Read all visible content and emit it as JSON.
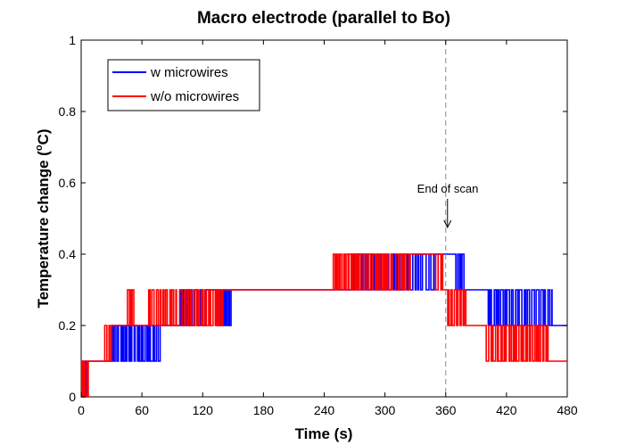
{
  "chart_data": {
    "type": "line",
    "title": "Macro electrode (parallel to Bo)",
    "xlabel": "Time (s)",
    "ylabel_prefix": "Temperature change (",
    "ylabel_sup": "o",
    "ylabel_suffix": "C)",
    "xlim": [
      0,
      480
    ],
    "ylim": [
      0,
      1
    ],
    "xticks": [
      0,
      60,
      120,
      180,
      240,
      300,
      360,
      420,
      480
    ],
    "yticks": [
      0,
      0.2,
      0.4,
      0.6,
      0.8,
      1
    ],
    "xtick_labels": [
      "0",
      "60",
      "120",
      "180",
      "240",
      "300",
      "360",
      "420",
      "480"
    ],
    "ytick_labels": [
      "0",
      "0.2",
      "0.4",
      "0.6",
      "0.8",
      "1"
    ],
    "grid": false,
    "legend_position": "top-left",
    "series": [
      {
        "name": "w microwires",
        "color": "#0000ff",
        "segments": [
          {
            "t": [
              0,
              5
            ],
            "levels": [
              0,
              0.1
            ],
            "toggle": 1.0
          },
          {
            "t": [
              5,
              30
            ],
            "levels": [
              0.1
            ],
            "toggle": 0
          },
          {
            "t": [
              30,
              36
            ],
            "levels": [
              0.1,
              0.2
            ],
            "toggle": 1.5
          },
          {
            "t": [
              36,
              78
            ],
            "levels": [
              0.1,
              0.2
            ],
            "toggle": 1.6
          },
          {
            "t": [
              78,
              97
            ],
            "levels": [
              0.2
            ],
            "toggle": 0
          },
          {
            "t": [
              97,
              108
            ],
            "levels": [
              0.2,
              0.3
            ],
            "toggle": 1.4
          },
          {
            "t": [
              108,
              125
            ],
            "levels": [
              0.2,
              0.3
            ],
            "toggle": 1.8
          },
          {
            "t": [
              125,
              135
            ],
            "levels": [
              0.3
            ],
            "toggle": 0
          },
          {
            "t": [
              135,
              148
            ],
            "levels": [
              0.2,
              0.3
            ],
            "toggle": 1.2
          },
          {
            "t": [
              148,
              265
            ],
            "levels": [
              0.3
            ],
            "toggle": 0
          },
          {
            "t": [
              265,
              290
            ],
            "levels": [
              0.3,
              0.4
            ],
            "toggle": 1.3
          },
          {
            "t": [
              290,
              310
            ],
            "levels": [
              0.3,
              0.4
            ],
            "toggle": 1.6
          },
          {
            "t": [
              310,
              350
            ],
            "levels": [
              0.3,
              0.4
            ],
            "toggle": 2.2
          },
          {
            "t": [
              350,
              370
            ],
            "levels": [
              0.4
            ],
            "toggle": 0
          },
          {
            "t": [
              370,
              378
            ],
            "levels": [
              0.3,
              0.4
            ],
            "toggle": 1.5
          },
          {
            "t": [
              378,
              402
            ],
            "levels": [
              0.3
            ],
            "toggle": 0
          },
          {
            "t": [
              402,
              465
            ],
            "levels": [
              0.2,
              0.3
            ],
            "toggle": 1.7
          },
          {
            "t": [
              465,
              480
            ],
            "levels": [
              0.2
            ],
            "toggle": 0
          }
        ]
      },
      {
        "name": "w/o microwires",
        "color": "#ff0000",
        "segments": [
          {
            "t": [
              0,
              7
            ],
            "levels": [
              0,
              0.1
            ],
            "toggle": 1.2
          },
          {
            "t": [
              7,
              22
            ],
            "levels": [
              0.1
            ],
            "toggle": 0
          },
          {
            "t": [
              22,
              30
            ],
            "levels": [
              0.1,
              0.2
            ],
            "toggle": 1.4
          },
          {
            "t": [
              30,
              44
            ],
            "levels": [
              0.2
            ],
            "toggle": 0
          },
          {
            "t": [
              44,
              52
            ],
            "levels": [
              0.2,
              0.3
            ],
            "toggle": 1.6
          },
          {
            "t": [
              52,
              66
            ],
            "levels": [
              0.2
            ],
            "toggle": 0
          },
          {
            "t": [
              66,
              80
            ],
            "levels": [
              0.2,
              0.3
            ],
            "toggle": 1.5
          },
          {
            "t": [
              80,
              95
            ],
            "levels": [
              0.2,
              0.3
            ],
            "toggle": 1.6
          },
          {
            "t": [
              95,
              140
            ],
            "levels": [
              0.2,
              0.3
            ],
            "toggle": 1.5
          },
          {
            "t": [
              140,
              248
            ],
            "levels": [
              0.3
            ],
            "toggle": 0
          },
          {
            "t": [
              248,
              275
            ],
            "levels": [
              0.3,
              0.4
            ],
            "toggle": 1.3
          },
          {
            "t": [
              275,
              295
            ],
            "levels": [
              0.3,
              0.4
            ],
            "toggle": 1.7
          },
          {
            "t": [
              295,
              325
            ],
            "levels": [
              0.3,
              0.4
            ],
            "toggle": 2.0
          },
          {
            "t": [
              325,
              350
            ],
            "levels": [
              0.4
            ],
            "toggle": 0
          },
          {
            "t": [
              350,
              357
            ],
            "levels": [
              0.3,
              0.4
            ],
            "toggle": 1.6
          },
          {
            "t": [
              357,
              362
            ],
            "levels": [
              0.3
            ],
            "toggle": 0
          },
          {
            "t": [
              362,
              380
            ],
            "levels": [
              0.2,
              0.3
            ],
            "toggle": 1.5
          },
          {
            "t": [
              380,
              400
            ],
            "levels": [
              0.2
            ],
            "toggle": 0
          },
          {
            "t": [
              400,
              412
            ],
            "levels": [
              0.1,
              0.2
            ],
            "toggle": 1.5
          },
          {
            "t": [
              412,
              430
            ],
            "levels": [
              0.1,
              0.2
            ],
            "toggle": 1.8
          },
          {
            "t": [
              430,
              462
            ],
            "levels": [
              0.1,
              0.2
            ],
            "toggle": 1.6
          },
          {
            "t": [
              462,
              480
            ],
            "levels": [
              0.1
            ],
            "toggle": 0
          }
        ]
      }
    ],
    "vline": {
      "x": 360,
      "style": "dashed",
      "color": "#888888"
    },
    "annotation": {
      "text": "End of scan",
      "arrow_x": 360,
      "arrow_from_y": 0.555,
      "arrow_to_y": 0.475
    }
  }
}
